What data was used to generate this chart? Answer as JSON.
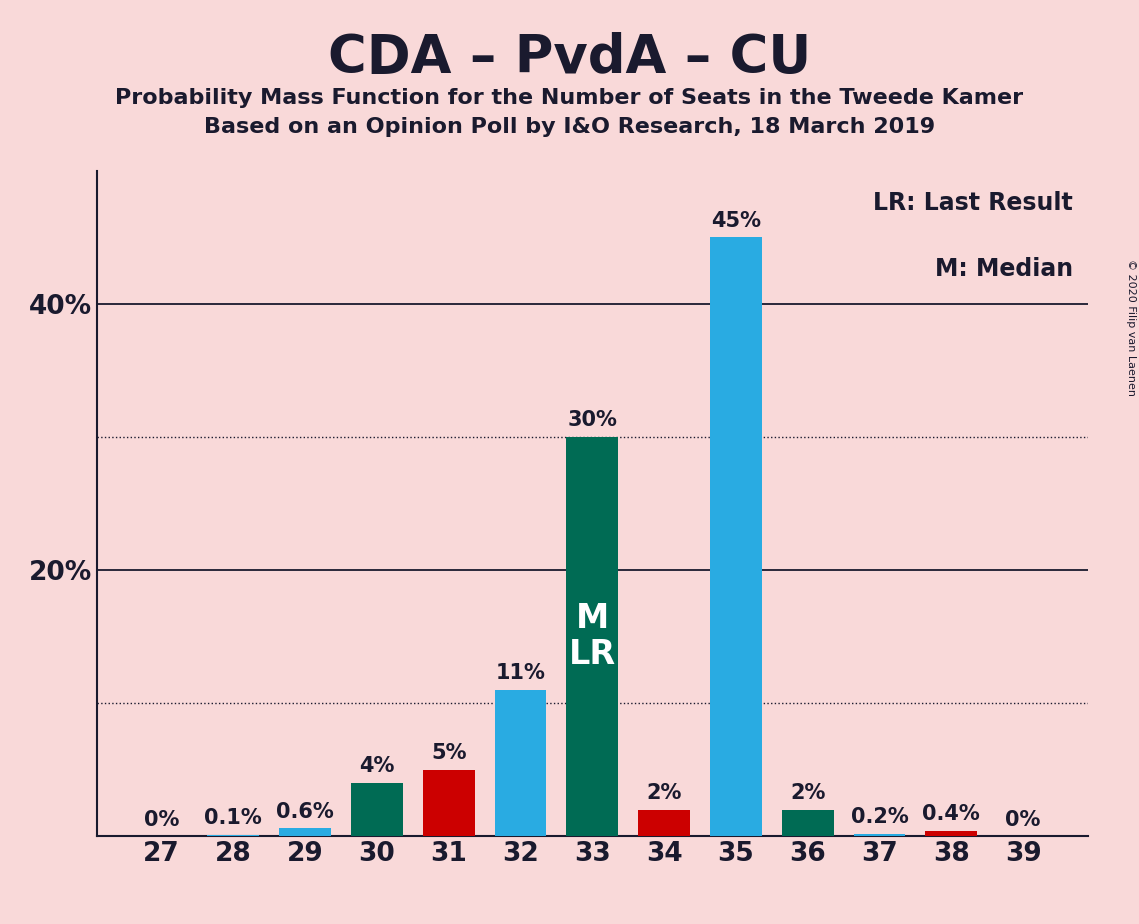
{
  "seats": [
    27,
    28,
    29,
    30,
    31,
    32,
    33,
    34,
    35,
    36,
    37,
    38,
    39
  ],
  "values": [
    0.0,
    0.1,
    0.6,
    4.0,
    5.0,
    11.0,
    30.0,
    2.0,
    45.0,
    2.0,
    0.2,
    0.4,
    0.0
  ],
  "labels": [
    "0%",
    "0.1%",
    "0.6%",
    "4%",
    "5%",
    "11%",
    "30%",
    "2%",
    "45%",
    "2%",
    "0.2%",
    "0.4%",
    "0%"
  ],
  "bar_colors": [
    "#29ABE2",
    "#29ABE2",
    "#29ABE2",
    "#006B54",
    "#CC0000",
    "#29ABE2",
    "#006B54",
    "#CC0000",
    "#29ABE2",
    "#006B54",
    "#29ABE2",
    "#CC0000",
    "#29ABE2"
  ],
  "title": "CDA – PvdA – CU",
  "subtitle1": "Probability Mass Function for the Number of Seats in the Tweede Kamer",
  "subtitle2": "Based on an Opinion Poll by I&O Research, 18 March 2019",
  "background_color": "#F9D9D9",
  "text_color": "#1a1a2e",
  "ylim": [
    0,
    50
  ],
  "solid_gridlines": [
    20,
    40
  ],
  "dotted_gridlines": [
    10,
    30
  ],
  "median_seat": 33,
  "legend_text1": "LR: Last Result",
  "legend_text2": "M: Median",
  "copyright_text": "© 2020 Filip van Laenen",
  "title_fontsize": 38,
  "subtitle_fontsize": 16,
  "tick_fontsize": 19,
  "label_fontsize": 15,
  "bar_width": 0.72
}
